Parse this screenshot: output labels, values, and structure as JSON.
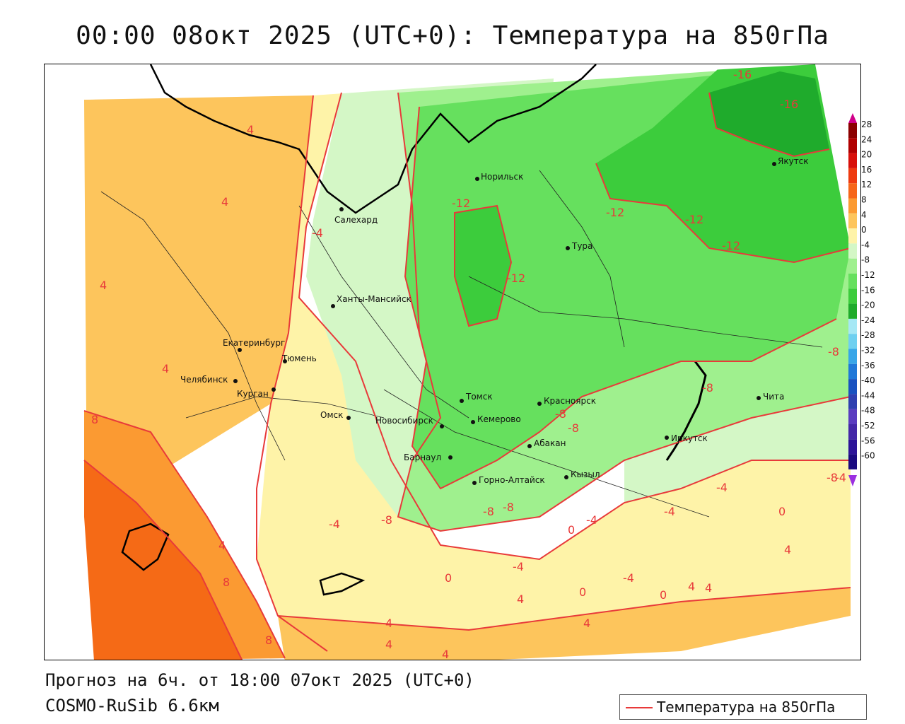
{
  "title": "00:00 08окт 2025 (UTC+0): Температура на 850гПа",
  "footer": {
    "forecast": "Прогноз на 6ч. от 18:00 07окт 2025 (UTC+0)",
    "model": "COSMO-RuSib 6.6км"
  },
  "legend": {
    "label": "Температура на 850гПа",
    "color": "#e83a3a"
  },
  "scale": {
    "ticks": [
      "28",
      "24",
      "20",
      "16",
      "12",
      "8",
      "4",
      "0",
      "-4",
      "-8",
      "-12",
      "-16",
      "-20",
      "-24",
      "-28",
      "-32",
      "-36",
      "-40",
      "-44",
      "-48",
      "-52",
      "-56",
      "-60"
    ]
  },
  "cities": [
    {
      "name": "Норильск"
    },
    {
      "name": "Салехард"
    },
    {
      "name": "Тура"
    },
    {
      "name": "Якутск"
    },
    {
      "name": "Ханты-Мансийск"
    },
    {
      "name": "Екатеринбург"
    },
    {
      "name": "Тюмень"
    },
    {
      "name": "Челябинск"
    },
    {
      "name": "Курган"
    },
    {
      "name": "Омск"
    },
    {
      "name": "Томск"
    },
    {
      "name": "Новосибирск"
    },
    {
      "name": "Кемерово"
    },
    {
      "name": "Красноярск"
    },
    {
      "name": "Абакан"
    },
    {
      "name": "Барнаул"
    },
    {
      "name": "Горно-Алтайск"
    },
    {
      "name": "Кызыл"
    },
    {
      "name": "Иркутск"
    },
    {
      "name": "Чита"
    }
  ],
  "contour_labels": [
    "4",
    "4",
    "4",
    "4",
    "-4",
    "-12",
    "-12",
    "-12",
    "-12",
    "-12",
    "-16",
    "-16",
    "-8",
    "-8",
    "-8",
    "-8",
    "-8",
    "-8",
    "-8",
    "8",
    "8",
    "8",
    "4",
    "-4",
    "-8",
    "-4",
    "0",
    "-4",
    "-4",
    "0",
    "4",
    "0",
    "4",
    "4",
    "4",
    "0",
    "-4",
    "4",
    "4",
    "4",
    "-4",
    "0",
    "4",
    "-4"
  ]
}
